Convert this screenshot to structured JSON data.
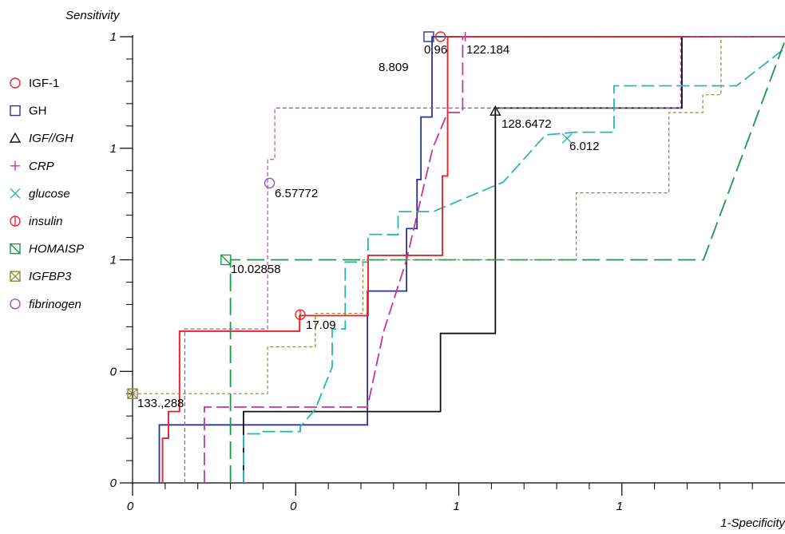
{
  "chart_data": {
    "type": "line",
    "xlabel": "1-Specificity",
    "ylabel": "Sensitivity",
    "xlim": [
      0,
      1
    ],
    "ylim": [
      0,
      1
    ],
    "x_tick_labels": [
      "0",
      "0",
      "1",
      "1"
    ],
    "x_tick_positions": [
      0,
      0.25,
      0.5,
      0.75
    ],
    "y_tick_labels": [
      "0",
      "0",
      "1",
      "1",
      "1"
    ],
    "y_tick_positions": [
      0,
      0.25,
      0.5,
      0.75,
      1
    ],
    "grid": false,
    "legend_placement": "left",
    "series": [
      {
        "name": "IGF-1",
        "color": "#e8262a",
        "dash": "solid",
        "marker": "circle",
        "italic": false,
        "points": [
          [
            0.046,
            0
          ],
          [
            0.046,
            0.1
          ],
          [
            0.055,
            0.1
          ],
          [
            0.055,
            0.16
          ],
          [
            0.072,
            0.16
          ],
          [
            0.072,
            0.34
          ],
          [
            0.256,
            0.34
          ],
          [
            0.256,
            0.375
          ],
          [
            0.361,
            0.375
          ],
          [
            0.361,
            0.51
          ],
          [
            0.475,
            0.51
          ],
          [
            0.475,
            0.557
          ],
          [
            0.475,
            0.557
          ],
          [
            0.475,
            0.688
          ],
          [
            0.483,
            0.688
          ],
          [
            0.483,
            1
          ],
          [
            1,
            1
          ]
        ]
      },
      {
        "name": "GH",
        "color": "#2b3590",
        "dash": "solid",
        "marker": "square",
        "italic": false,
        "points": [
          [
            0.041,
            0
          ],
          [
            0.041,
            0.13
          ],
          [
            0.36,
            0.13
          ],
          [
            0.36,
            0.43
          ],
          [
            0.42,
            0.43
          ],
          [
            0.42,
            0.57
          ],
          [
            0.436,
            0.57
          ],
          [
            0.436,
            0.68
          ],
          [
            0.442,
            0.68
          ],
          [
            0.442,
            0.82
          ],
          [
            0.459,
            0.82
          ],
          [
            0.459,
            1
          ],
          [
            1,
            1
          ]
        ]
      },
      {
        "name": "IGF//GH",
        "color": "#111111",
        "dash": "solid",
        "marker": "triangle",
        "italic": true,
        "points": [
          [
            0.17,
            0
          ],
          [
            0.17,
            0.16
          ],
          [
            0.472,
            0.16
          ],
          [
            0.472,
            0.335
          ],
          [
            0.556,
            0.335
          ],
          [
            0.556,
            0.84
          ],
          [
            0.842,
            0.84
          ],
          [
            0.842,
            1
          ],
          [
            1,
            1
          ]
        ]
      },
      {
        "name": "CRP",
        "color": "#cc3399",
        "dash": "dash",
        "marker": "plus",
        "italic": true,
        "points": [
          [
            0.11,
            0
          ],
          [
            0.11,
            0.17
          ],
          [
            0.36,
            0.17
          ],
          [
            0.385,
            0.34
          ],
          [
            0.42,
            0.5
          ],
          [
            0.46,
            0.75
          ],
          [
            0.483,
            0.83
          ],
          [
            0.506,
            0.83
          ],
          [
            0.506,
            1
          ],
          [
            1,
            1
          ]
        ]
      },
      {
        "name": "glucose",
        "color": "#2ab5b0",
        "dash": "dash",
        "marker": "x",
        "italic": true,
        "points": [
          [
            0.17,
            0
          ],
          [
            0.17,
            0.11
          ],
          [
            0.195,
            0.11
          ],
          [
            0.195,
            0.115
          ],
          [
            0.257,
            0.115
          ],
          [
            0.257,
            0.126
          ],
          [
            0.28,
            0.165
          ],
          [
            0.306,
            0.26
          ],
          [
            0.306,
            0.345
          ],
          [
            0.326,
            0.345
          ],
          [
            0.326,
            0.495
          ],
          [
            0.361,
            0.495
          ],
          [
            0.361,
            0.557
          ],
          [
            0.371,
            0.557
          ],
          [
            0.371,
            0.557
          ],
          [
            0.379,
            0.557
          ],
          [
            0.407,
            0.556
          ],
          [
            0.407,
            0.608
          ],
          [
            0.461,
            0.608
          ],
          [
            0.568,
            0.674
          ],
          [
            0.633,
            0.78
          ],
          [
            0.679,
            0.786
          ],
          [
            0.738,
            0.786
          ],
          [
            0.738,
            0.89
          ],
          [
            0.897,
            0.89
          ],
          [
            0.926,
            0.89
          ],
          [
            0.926,
            0.89
          ],
          [
            0.998,
            0.972
          ]
        ]
      },
      {
        "name": "insulin",
        "color": "#e8262a",
        "dash": "solid",
        "marker": "circle-bar",
        "italic": true,
        "points": [
          [
            0.046,
            0
          ],
          [
            0.046,
            0.1
          ],
          [
            0.055,
            0.1
          ],
          [
            0.055,
            0.16
          ],
          [
            0.072,
            0.16
          ],
          [
            0.072,
            0.34
          ],
          [
            0.256,
            0.34
          ],
          [
            0.256,
            0.375
          ],
          [
            0.361,
            0.375
          ],
          [
            0.361,
            0.51
          ],
          [
            0.475,
            0.51
          ],
          [
            0.475,
            0.557
          ],
          [
            0.475,
            0.557
          ],
          [
            0.475,
            0.688
          ],
          [
            0.483,
            0.688
          ],
          [
            0.483,
            1
          ],
          [
            0.483,
            1
          ],
          [
            1,
            1
          ]
        ]
      },
      {
        "name": "HOMAISP",
        "color": "#1a9a46",
        "dash": "longdash",
        "marker": "square-slash",
        "italic": true,
        "points": [
          [
            0.15,
            0
          ],
          [
            0.15,
            0.5
          ],
          [
            0.875,
            0.5
          ],
          [
            1,
            0.991
          ]
        ]
      },
      {
        "name": "IGFBP3",
        "color": "#8a8a3a",
        "dash": "dot",
        "marker": "square-x",
        "italic": true,
        "points": [
          [
            0,
            0.2
          ],
          [
            0,
            0.2
          ],
          [
            0.207,
            0.2
          ],
          [
            0.207,
            0.305
          ],
          [
            0.28,
            0.305
          ],
          [
            0.28,
            0.38
          ],
          [
            0.353,
            0.38
          ],
          [
            0.353,
            0.5
          ],
          [
            0.68,
            0.5
          ],
          [
            0.68,
            0.65
          ],
          [
            0.822,
            0.65
          ],
          [
            0.822,
            0.83
          ],
          [
            0.874,
            0.83
          ],
          [
            0.874,
            0.87
          ],
          [
            0.902,
            0.87
          ],
          [
            0.902,
            1
          ],
          [
            1,
            1
          ]
        ]
      },
      {
        "name": "fibrinogen",
        "color": "#a050c0",
        "dash": "fine-dash",
        "marker": "circle",
        "italic": true,
        "points": [
          [
            0.08,
            0
          ],
          [
            0.08,
            0.345
          ],
          [
            0.207,
            0.345
          ],
          [
            0.207,
            0.725
          ],
          [
            0.218,
            0.725
          ],
          [
            0.218,
            0.84
          ],
          [
            0.84,
            0.84
          ],
          [
            0.84,
            1
          ],
          [
            1,
            1
          ]
        ]
      }
    ]
  },
  "annotations": {
    "igf1_top": "0.96",
    "gh_left": "8.809",
    "crp_top": "122.184",
    "igfgh_mid": "128.6472",
    "glucose_mid": "6.012",
    "fibrinogen_mid": "6.57772",
    "homaisp_mid": "10.02858",
    "insulin_mid": "17.09",
    "igfbp3_left": "133.,288"
  },
  "legend": {
    "items": [
      {
        "label": "IGF-1",
        "italic": false,
        "color": "#e8262a",
        "icon": "circle-icon"
      },
      {
        "label": "GH",
        "italic": false,
        "color": "#2b3590",
        "icon": "square-icon"
      },
      {
        "label": "IGF//GH",
        "italic": true,
        "color": "#111111",
        "icon": "triangle-icon"
      },
      {
        "label": "CRP",
        "italic": true,
        "color": "#cc3399",
        "icon": "plus-icon"
      },
      {
        "label": "glucose",
        "italic": true,
        "color": "#2ab5b0",
        "icon": "x-icon"
      },
      {
        "label": "insulin",
        "italic": true,
        "color": "#e8262a",
        "icon": "circle-bar-icon"
      },
      {
        "label": "HOMAISP",
        "italic": true,
        "color": "#1a9a46",
        "icon": "square-slash-icon"
      },
      {
        "label": "IGFBP3",
        "italic": true,
        "color": "#8a8a3a",
        "icon": "square-x-icon"
      },
      {
        "label": "fibrinogen",
        "italic": true,
        "color": "#a050c0",
        "icon": "circle-icon"
      }
    ]
  }
}
